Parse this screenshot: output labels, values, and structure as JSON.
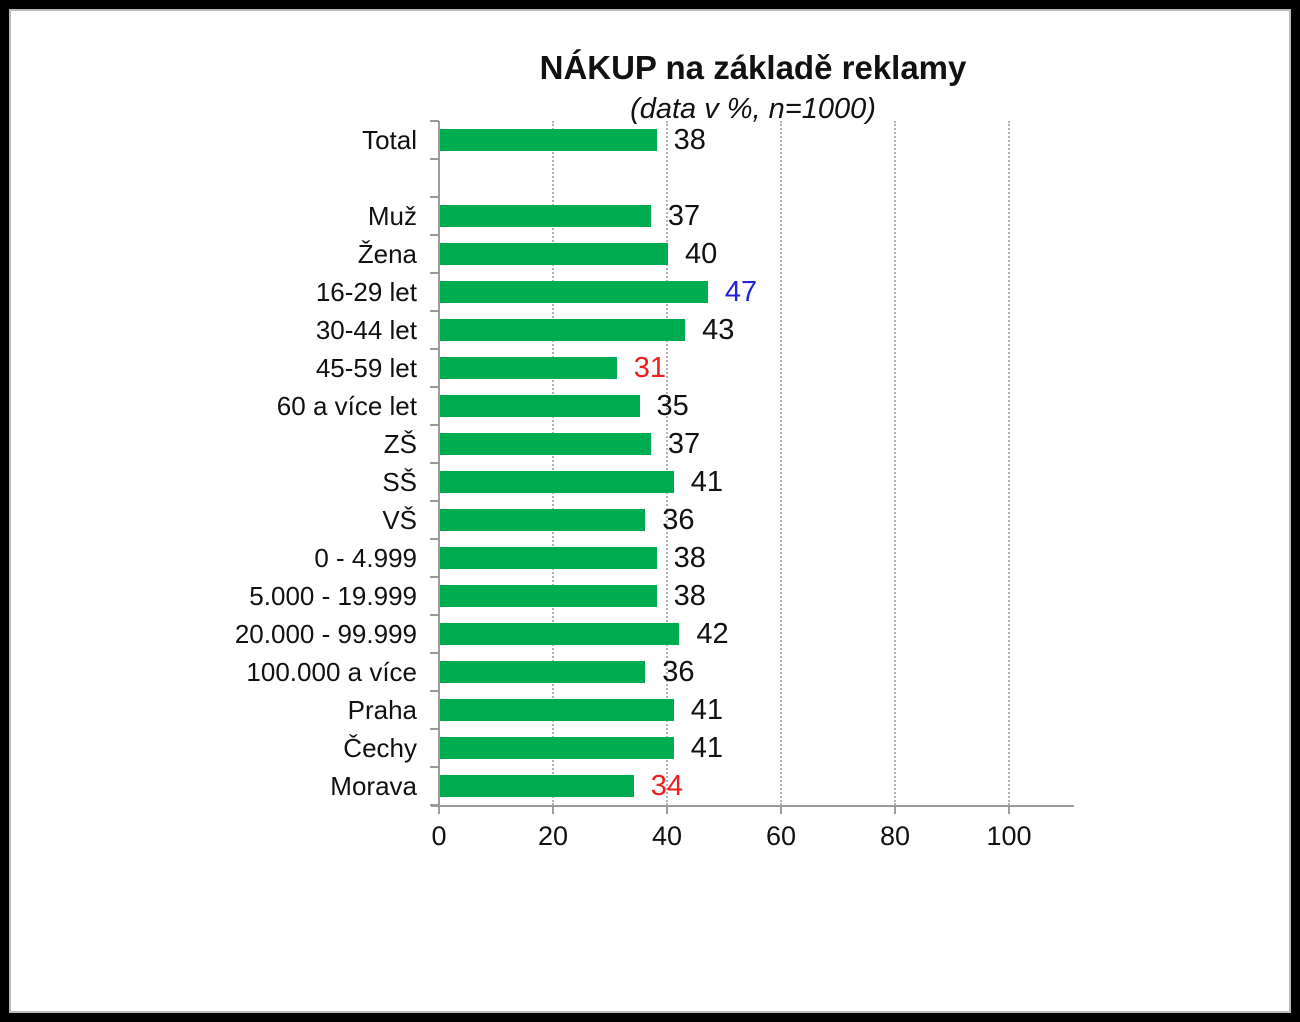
{
  "chart_data": {
    "type": "bar",
    "orientation": "horizontal",
    "title": "NÁKUP na základě reklamy",
    "subtitle": "(data v %, n=1000)",
    "rows": [
      {
        "label": "Total",
        "value": 38,
        "color": "black"
      },
      {
        "label": "",
        "value": null,
        "color": "black",
        "spacer": true
      },
      {
        "label": "Muž",
        "value": 37,
        "color": "black"
      },
      {
        "label": "Žena",
        "value": 40,
        "color": "black"
      },
      {
        "label": "16-29 let",
        "value": 47,
        "color": "blue"
      },
      {
        "label": "30-44 let",
        "value": 43,
        "color": "black"
      },
      {
        "label": "45-59 let",
        "value": 31,
        "color": "red"
      },
      {
        "label": "60 a více let",
        "value": 35,
        "color": "black"
      },
      {
        "label": "ZŠ",
        "value": 37,
        "color": "black"
      },
      {
        "label": "SŠ",
        "value": 41,
        "color": "black"
      },
      {
        "label": "VŠ",
        "value": 36,
        "color": "black"
      },
      {
        "label": "0 - 4.999",
        "value": 38,
        "color": "black"
      },
      {
        "label": "5.000 - 19.999",
        "value": 38,
        "color": "black"
      },
      {
        "label": "20.000 - 99.999",
        "value": 42,
        "color": "black"
      },
      {
        "label": "100.000 a více",
        "value": 36,
        "color": "black"
      },
      {
        "label": "Praha",
        "value": 41,
        "color": "black"
      },
      {
        "label": "Čechy",
        "value": 41,
        "color": "black"
      },
      {
        "label": "Morava",
        "value": 34,
        "color": "red"
      }
    ],
    "xlim": [
      0,
      110
    ],
    "xticks": [
      0,
      20,
      40,
      60,
      80,
      100
    ],
    "grid": "vertical-dotted",
    "legend": "none",
    "bar_color": "#00AC50",
    "axis_color": "#9b9b9b",
    "gridline_color": "#b3b3b3",
    "label_colors": {
      "black": "#111111",
      "blue": "#2323DC",
      "red": "#EF1D1D"
    }
  }
}
